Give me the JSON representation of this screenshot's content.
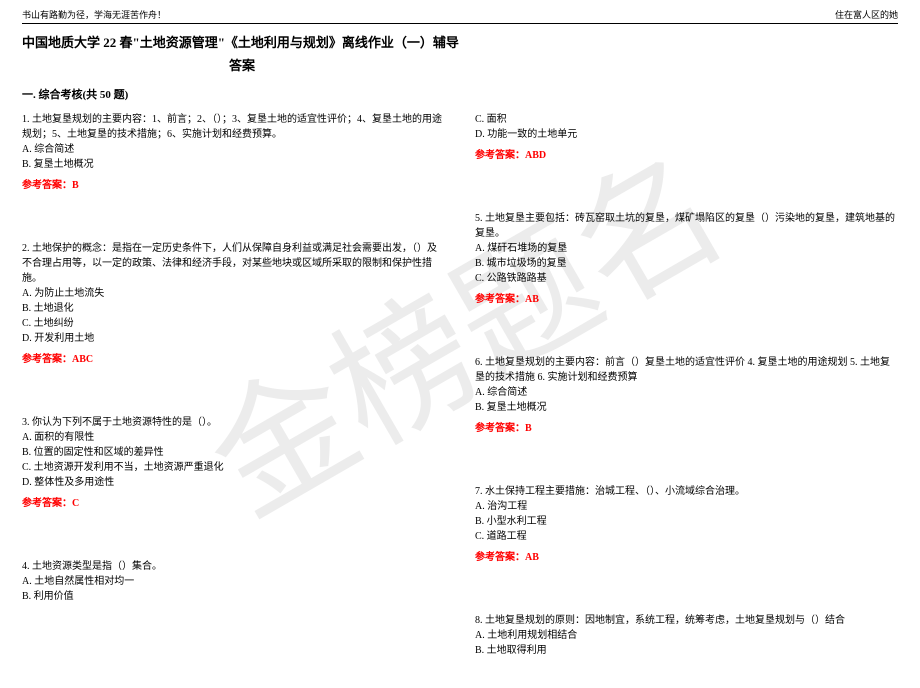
{
  "header": {
    "left": "书山有路勤为径，学海无涯苦作舟！",
    "right": "住在富人区的她"
  },
  "title": "中国地质大学 22 春\"土地资源管理\"《土地利用与规划》离线作业（一）辅导",
  "title_answer": "答案",
  "section": "一. 综合考核(共 50 题)",
  "watermark": "金榜题名",
  "colors": {
    "answer": "#ff0000",
    "text": "#000000",
    "background": "#ffffff",
    "watermark": "rgba(200,200,200,0.35)"
  },
  "left_questions": [
    {
      "num": "1",
      "text": "1. 土地复垦规划的主要内容：1、前言；2、（）；3、复垦土地的适宜性评价；4、复垦土地的用途规划；5、土地复垦的技术措施；6、实施计划和经费预算。",
      "options": [
        "A. 综合简述",
        "B. 复垦土地概况"
      ],
      "answer": "参考答案：B"
    },
    {
      "num": "2",
      "text": "2. 土地保护的概念：是指在一定历史条件下，人们从保障自身利益或满足社会需要出发，（）及不合理占用等，以一定的政策、法律和经济手段，对某些地块或区域所采取的限制和保护性措施。",
      "options": [
        "A. 为防止土地流失",
        "B. 土地退化",
        "C. 土地纠纷",
        "D. 开发利用土地"
      ],
      "answer": "参考答案：ABC"
    },
    {
      "num": "3",
      "text": "3. 你认为下列不属于土地资源特性的是（）。",
      "options": [
        "A. 面积的有限性",
        "B. 位置的固定性和区域的差异性",
        "C. 土地资源开发利用不当，土地资源严重退化",
        "D. 整体性及多用途性"
      ],
      "answer": "参考答案：C"
    },
    {
      "num": "4",
      "text": "4. 土地资源类型是指（）集合。",
      "options": [
        "A. 土地自然属性相对均一",
        "B. 利用价值"
      ],
      "answer": ""
    }
  ],
  "right_questions": [
    {
      "num": "4b",
      "text": "",
      "options": [
        "C. 面积",
        "D. 功能一致的土地单元"
      ],
      "answer": "参考答案：ABD"
    },
    {
      "num": "5",
      "text": "5. 土地复垦主要包括：砖瓦窑取土坑的复垦，煤矿塌陷区的复垦（）污染地的复垦，建筑地基的复垦。",
      "options": [
        "A. 煤矸石堆场的复垦",
        "B. 城市垃圾场的复垦",
        "C. 公路铁路路基"
      ],
      "answer": "参考答案：AB"
    },
    {
      "num": "6",
      "text": "6. 土地复垦规划的主要内容：前言（）复垦土地的适宜性评价 4. 复垦土地的用途规划 5. 土地复垦的技术措施 6. 实施计划和经费预算",
      "options": [
        "A. 综合简述",
        "B. 复垦土地概况"
      ],
      "answer": "参考答案：B"
    },
    {
      "num": "7",
      "text": "7. 水土保持工程主要措施：治城工程、（）、小流域综合治理。",
      "options": [
        "A. 治沟工程",
        "B. 小型水利工程",
        "C. 道路工程"
      ],
      "answer": "参考答案：AB"
    },
    {
      "num": "8",
      "text": "8. 土地复垦规划的原则：因地制宜，系统工程，统筹考虑，土地复垦规划与（）结合",
      "options": [
        "A. 土地利用规划相结合",
        "B. 土地取得利用"
      ],
      "answer": ""
    }
  ]
}
